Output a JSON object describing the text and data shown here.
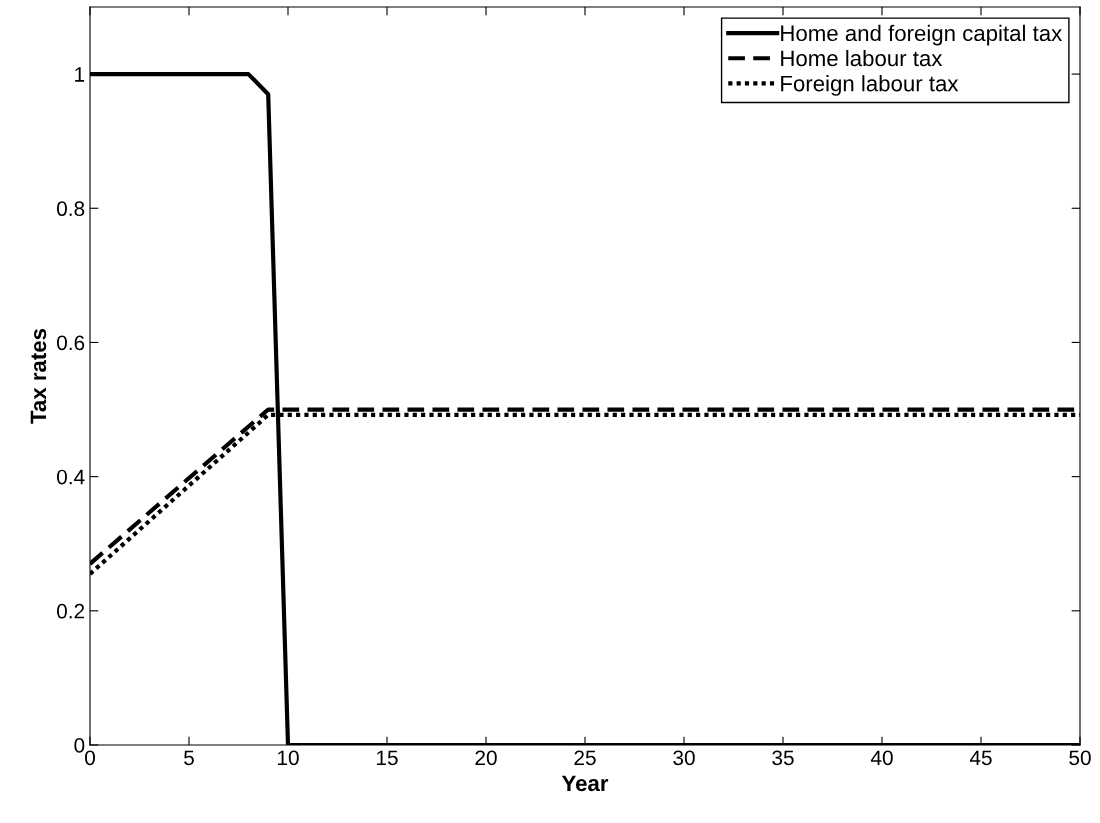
{
  "chart_data": {
    "type": "line",
    "xlabel": "Year",
    "ylabel": "Tax rates",
    "xlim": [
      0,
      50
    ],
    "ylim": [
      0,
      1.1
    ],
    "xticks": [
      0,
      5,
      10,
      15,
      20,
      25,
      30,
      35,
      40,
      45,
      50
    ],
    "yticks": [
      0,
      0.2,
      0.4,
      0.6,
      0.8,
      1
    ],
    "grid": false,
    "legend": "top right",
    "marker": "none",
    "series": [
      {
        "name": "Home and foreign capital tax",
        "color": "#000000",
        "line_style": "solid",
        "x": [
          0,
          8,
          9,
          10,
          50
        ],
        "values": [
          1,
          1,
          0.97,
          0,
          0
        ]
      },
      {
        "name": "Home labour tax",
        "color": "#000000",
        "line_style": "dashed",
        "x": [
          0,
          9,
          50
        ],
        "values": [
          0.27,
          0.5,
          0.5
        ]
      },
      {
        "name": "Foreign labour tax",
        "color": "#000000",
        "line_style": "dotted",
        "x": [
          0,
          9,
          50
        ],
        "values": [
          0.255,
          0.492,
          0.492
        ]
      }
    ]
  }
}
